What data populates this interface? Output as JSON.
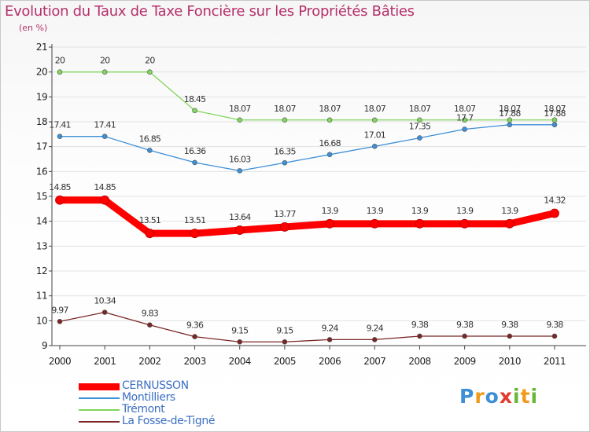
{
  "title": "Evolution du Taux de Taxe Foncière sur les Propriétés Bâties",
  "unit_label": "(en %)",
  "brand": {
    "letters": [
      {
        "ch": "P",
        "color": "#3d8fd6"
      },
      {
        "ch": "r",
        "color": "#f29a1c"
      },
      {
        "ch": "o",
        "color": "#3d8fd6"
      },
      {
        "ch": "x",
        "color": "#e23c2e"
      },
      {
        "ch": "i",
        "color": "#67b83a"
      },
      {
        "ch": "t",
        "color": "#f29a1c"
      },
      {
        "ch": "i",
        "color": "#67b83a"
      }
    ]
  },
  "chart_data": {
    "type": "line",
    "title": "Evolution du Taux de Taxe Foncière sur les Propriétés Bâties",
    "ylabel": "(en %)",
    "xlabel": "",
    "x": [
      "2000",
      "2001",
      "2002",
      "2003",
      "2004",
      "2005",
      "2006",
      "2007",
      "2008",
      "2009",
      "2010",
      "2011"
    ],
    "ylim": [
      9,
      21
    ],
    "yticks": [
      "9",
      "10",
      "11",
      "12",
      "13",
      "14",
      "15",
      "16",
      "17",
      "18",
      "19",
      "20",
      "21"
    ],
    "grid": "horizontal",
    "legend_position": "bottom-left",
    "series": [
      {
        "name": "CERNUSSON",
        "color": "#ff0000",
        "values": [
          14.85,
          14.85,
          13.51,
          13.51,
          13.64,
          13.77,
          13.9,
          13.9,
          13.9,
          13.9,
          13.9,
          14.32
        ],
        "labels": [
          "14.85",
          "14.85",
          "13.51",
          "13.51",
          "13.64",
          "13.77",
          "13.9",
          "13.9",
          "13.9",
          "13.9",
          "13.9",
          "14.32"
        ]
      },
      {
        "name": "Montilliers",
        "color": "#3d8fd6",
        "values": [
          17.41,
          17.41,
          16.85,
          16.36,
          16.03,
          16.35,
          16.68,
          17.01,
          17.35,
          17.7,
          17.88,
          17.88
        ],
        "labels": [
          "17.41",
          "17.41",
          "16.85",
          "16.36",
          "16.03",
          "16.35",
          "16.68",
          "17.01",
          "17.35",
          "17.7",
          "17.88",
          "17.88"
        ]
      },
      {
        "name": "Trémont",
        "color": "#7fd65a",
        "values": [
          20,
          20,
          20,
          18.45,
          18.07,
          18.07,
          18.07,
          18.07,
          18.07,
          18.07,
          18.07,
          18.07
        ],
        "labels": [
          "20",
          "20",
          "20",
          "18.45",
          "18.07",
          "18.07",
          "18.07",
          "18.07",
          "18.07",
          "18.07",
          "18.07",
          "18.07"
        ]
      },
      {
        "name": "La Fosse-de-Tigné",
        "color": "#7a2626",
        "values": [
          9.97,
          10.34,
          9.83,
          9.36,
          9.15,
          9.15,
          9.24,
          9.24,
          9.38,
          9.38,
          9.38,
          9.38
        ],
        "labels": [
          "9.97",
          "10.34",
          "9.83",
          "9.36",
          "9.15",
          "9.15",
          "9.24",
          "9.24",
          "9.38",
          "9.38",
          "9.38",
          "9.38"
        ]
      }
    ]
  }
}
